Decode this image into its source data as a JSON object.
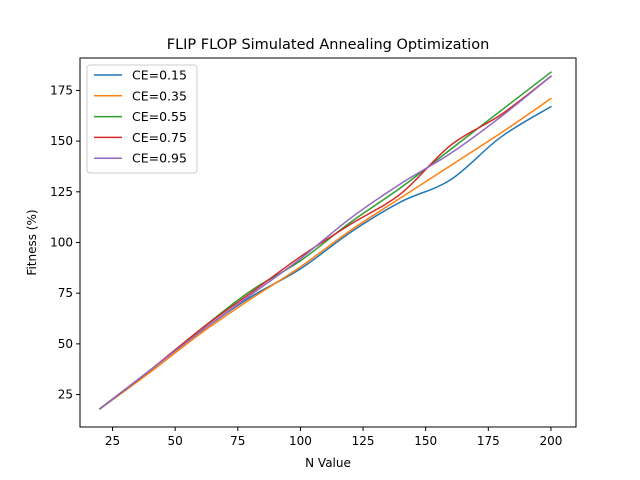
{
  "chart_data": {
    "type": "line",
    "title": "FLIP FLOP Simulated Annealing Optimization",
    "xlabel": "N Value",
    "ylabel": "Fitness (%)",
    "xlim": [
      12,
      210
    ],
    "ylim": [
      9,
      191
    ],
    "xticks": [
      25,
      50,
      75,
      100,
      125,
      150,
      175,
      200
    ],
    "yticks": [
      25,
      50,
      75,
      100,
      125,
      150,
      175
    ],
    "grid": false,
    "legend_position": "upper-left",
    "x": [
      20,
      40,
      60,
      80,
      100,
      120,
      140,
      160,
      180,
      200
    ],
    "series": [
      {
        "name": "CE=0.15",
        "color": "#1f77b4",
        "values": [
          18,
          37,
          56,
          73,
          87,
          105,
          120,
          131,
          152,
          167
        ]
      },
      {
        "name": "CE=0.35",
        "color": "#ff7f0e",
        "values": [
          18,
          36,
          55,
          72,
          88,
          106,
          122,
          138,
          154,
          171
        ]
      },
      {
        "name": "CE=0.55",
        "color": "#2ca02c",
        "values": [
          18,
          37,
          57,
          76,
          91,
          110,
          127,
          146,
          165,
          184
        ]
      },
      {
        "name": "CE=0.75",
        "color": "#d62728",
        "values": [
          18,
          37,
          57,
          75,
          93,
          109,
          124,
          148,
          163,
          182
        ]
      },
      {
        "name": "CE=0.95",
        "color": "#9467bd",
        "values": [
          18,
          37,
          56,
          74,
          92,
          112,
          129,
          144,
          162,
          182
        ]
      }
    ]
  }
}
